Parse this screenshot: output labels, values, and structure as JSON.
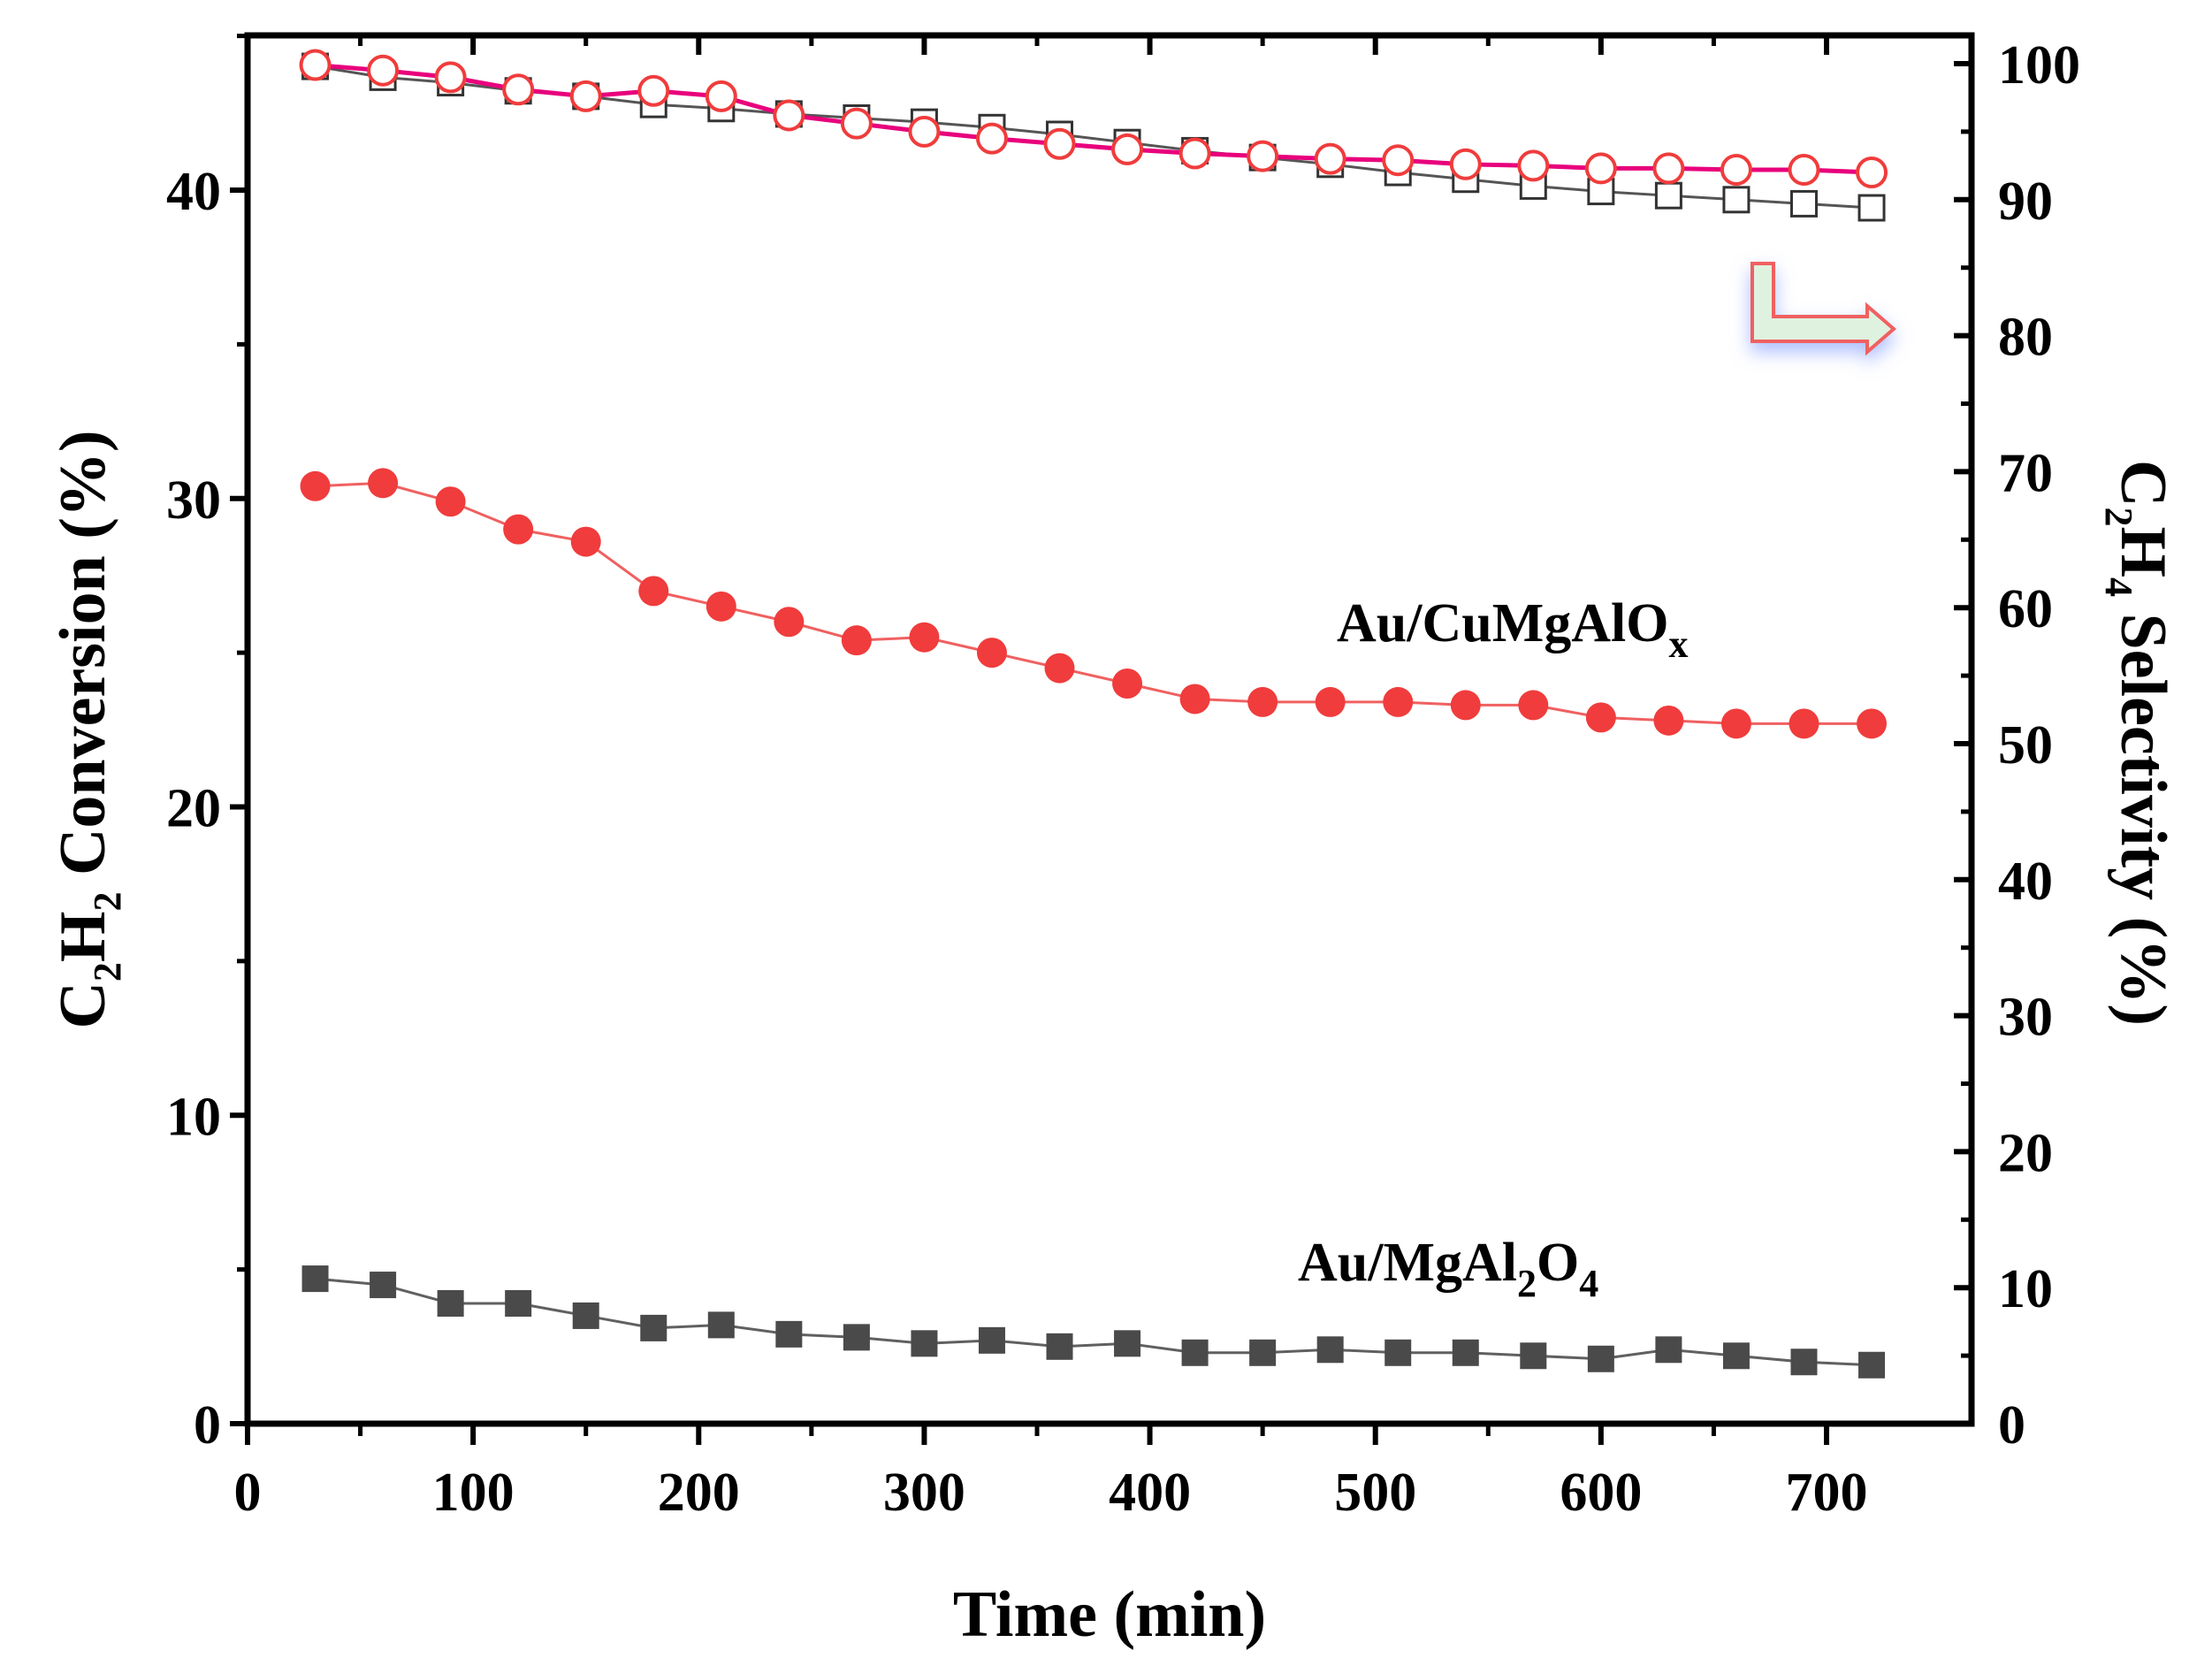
{
  "chart_data": {
    "type": "line",
    "x_axis": {
      "label": "Time (min)",
      "lim": [
        0,
        760
      ],
      "ticks": [
        0,
        100,
        200,
        300,
        400,
        500,
        600,
        700
      ]
    },
    "y_axis_left": {
      "label_parts": [
        "C",
        "2",
        "H",
        "2",
        " Conversion (%)"
      ],
      "lim": [
        0,
        45
      ],
      "ticks": [
        0,
        10,
        20,
        30,
        40
      ]
    },
    "y_axis_right": {
      "label_parts": [
        "C",
        "2",
        "H",
        "4",
        " Selectivity (%)"
      ],
      "lim": [
        0,
        100
      ],
      "ticks": [
        0,
        10,
        20,
        30,
        40,
        50,
        60,
        70,
        80,
        90,
        100
      ]
    },
    "x": [
      30,
      60,
      90,
      120,
      150,
      180,
      210,
      240,
      270,
      300,
      330,
      360,
      390,
      420,
      450,
      480,
      510,
      540,
      570,
      600,
      630,
      660,
      690,
      720
    ],
    "series": [
      {
        "name": "Au/CuMgAlOx conversion",
        "axis": "left",
        "marker": "filled-circle",
        "color": "#f03c3c",
        "line_color": "#f06060",
        "values": [
          30.4,
          30.5,
          29.9,
          29.0,
          28.6,
          27.0,
          26.5,
          26.0,
          25.4,
          25.5,
          25.0,
          24.5,
          24.0,
          23.5,
          23.4,
          23.4,
          23.4,
          23.3,
          23.3,
          22.9,
          22.8,
          22.7,
          22.7,
          22.7
        ]
      },
      {
        "name": "Au/MgAl2O4 conversion",
        "axis": "left",
        "marker": "filled-square",
        "color": "#4a4a4a",
        "line_color": "#606060",
        "values": [
          4.7,
          4.5,
          3.9,
          3.9,
          3.5,
          3.1,
          3.2,
          2.9,
          2.8,
          2.6,
          2.7,
          2.5,
          2.6,
          2.3,
          2.3,
          2.4,
          2.3,
          2.3,
          2.2,
          2.1,
          2.4,
          2.2,
          2.0,
          1.9
        ]
      },
      {
        "name": "Au/MgAl2O4 selectivity",
        "axis": "right",
        "marker": "open-square",
        "color": "#333333",
        "line_color": "#555555",
        "values": [
          99.8,
          99.0,
          98.6,
          98.0,
          97.6,
          97.0,
          96.7,
          96.3,
          96.0,
          95.7,
          95.3,
          94.8,
          94.2,
          93.6,
          93.1,
          92.6,
          92.0,
          91.5,
          91.0,
          90.6,
          90.3,
          90.0,
          89.7,
          89.4
        ]
      },
      {
        "name": "Au/CuMgAlOx selectivity",
        "axis": "right",
        "marker": "open-circle",
        "color": "#f03c3c",
        "line_color": "#e8007c",
        "values": [
          99.9,
          99.5,
          99.0,
          98.1,
          97.6,
          98.0,
          97.6,
          96.2,
          95.6,
          95.0,
          94.5,
          94.1,
          93.7,
          93.4,
          93.2,
          93.0,
          92.9,
          92.6,
          92.5,
          92.3,
          92.3,
          92.2,
          92.2,
          92.0
        ]
      }
    ],
    "annotations": [
      {
        "base": "Au/CuMgAlO",
        "sub": "x",
        "tail": "",
        "sub2": "",
        "tail2": ""
      },
      {
        "base": "Au/MgAl",
        "sub": "2",
        "tail": "O",
        "sub2": "4",
        "tail2": ""
      }
    ],
    "arrow": {
      "points_to": "right-axis",
      "fill": "#dff2e0",
      "stroke": "#f06060"
    }
  }
}
